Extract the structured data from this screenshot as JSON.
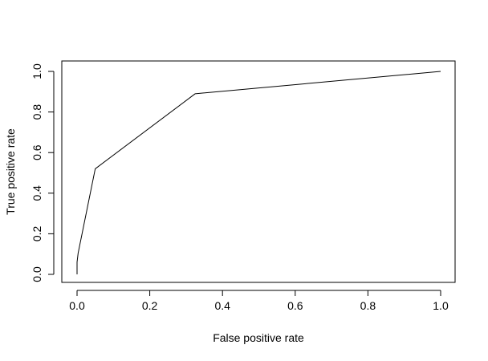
{
  "chart_data": {
    "type": "line",
    "title": "",
    "xlabel": "False positive rate",
    "ylabel": "True positive rate",
    "xlim": [
      0,
      1
    ],
    "ylim": [
      0,
      1
    ],
    "x_ticks": [
      "0.0",
      "0.2",
      "0.4",
      "0.6",
      "0.8",
      "1.0"
    ],
    "y_ticks": [
      "0.0",
      "0.2",
      "0.4",
      "0.6",
      "0.8",
      "1.0"
    ],
    "grid": false,
    "legend": "none",
    "series": [
      {
        "x": [
          0.0,
          0.0,
          0.003,
          0.05,
          0.325,
          1.0
        ],
        "y": [
          0.0,
          0.06,
          0.105,
          0.52,
          0.89,
          1.0
        ],
        "color": "#000000"
      }
    ]
  }
}
